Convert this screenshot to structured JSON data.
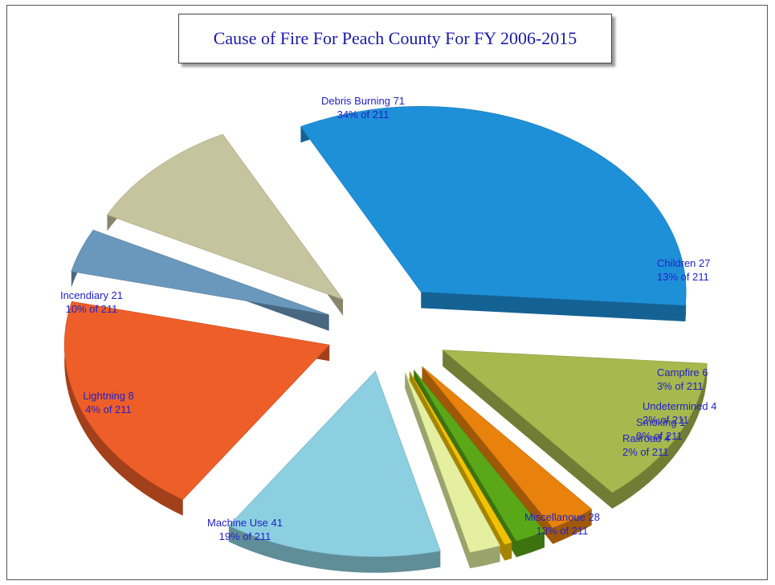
{
  "chart_data": {
    "type": "pie",
    "title": "Cause of Fire For Peach County For FY 2006-2015",
    "total": 211,
    "slices": [
      {
        "name": "Debris Burning",
        "value": 71,
        "value_label": "71",
        "pct_label": "34% of 211",
        "color": "#1e90d8"
      },
      {
        "name": "Children",
        "value": 27,
        "value_label": "27",
        "pct_label": "13% of 211",
        "color": "#a6b84e"
      },
      {
        "name": "Campfire",
        "value": 6,
        "value_label": "6",
        "pct_label": "3% of 211",
        "color": "#e8820c"
      },
      {
        "name": "Undetermined",
        "value": 4,
        "value_label": "4",
        "pct_label": "2% of 211",
        "color": "#5aa818"
      },
      {
        "name": "Smoking",
        "value": 1,
        "value_label": "1",
        "pct_label": "0% of 211",
        "color": "#f2c200"
      },
      {
        "name": "Railroad",
        "value": 4,
        "value_label": "4",
        "pct_label": "2% of 211",
        "color": "#e4f0a0"
      },
      {
        "name": "Miscellanoue",
        "value": 28,
        "value_label": "28",
        "pct_label": "13% of 211",
        "color": "#8ccfe0"
      },
      {
        "name": "Machine Use",
        "value": 41,
        "value_label": "41",
        "pct_label": "19% of 211",
        "color": "#ee5e28"
      },
      {
        "name": "Lightning",
        "value": 8,
        "value_label": "8",
        "pct_label": "4% of 211",
        "color": "#6a98bc"
      },
      {
        "name": "Incendiary",
        "value": 21,
        "value_label": "21",
        "pct_label": "10% of 211",
        "color": "#c6c49e"
      }
    ]
  }
}
